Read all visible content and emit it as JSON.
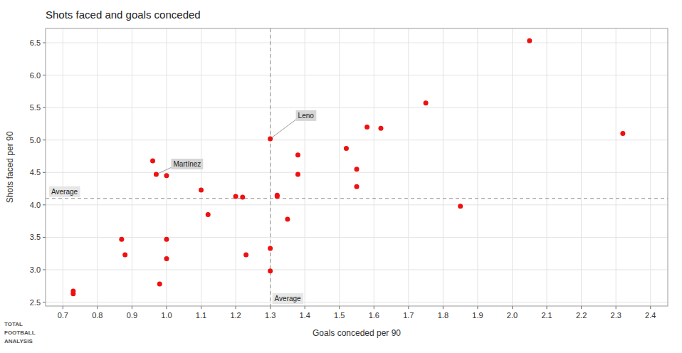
{
  "chart_data": {
    "type": "scatter",
    "title": "Shots faced and goals conceded",
    "xlabel": "Goals conceded per 90",
    "ylabel": "Shots faced per 90",
    "color": "#ee1111",
    "grid": true,
    "xlim": [
      0.65,
      2.45
    ],
    "ylim": [
      2.44,
      6.72
    ],
    "xticks": [
      0.7,
      0.8,
      0.9,
      {
        "value": 1.0,
        "label": "1.0"
      },
      1.1,
      1.2,
      1.3,
      1.4,
      1.5,
      1.6,
      1.7,
      1.8,
      1.9,
      {
        "value": 2.0,
        "label": "2.0"
      },
      2.1,
      2.2,
      2.3,
      2.4
    ],
    "yticks": [
      2.5,
      {
        "value": 3.0,
        "label": "3.0"
      },
      3.5,
      {
        "value": 4.0,
        "label": "4.0"
      },
      4.5,
      {
        "value": 5.0,
        "label": "5.0"
      },
      5.5,
      {
        "value": 6.0,
        "label": "6.0"
      },
      6.5
    ],
    "x": [
      0.73,
      0.73,
      0.87,
      0.88,
      0.96,
      0.97,
      0.98,
      1.0,
      1.0,
      1.0,
      1.1,
      1.12,
      1.2,
      1.22,
      1.23,
      1.3,
      1.3,
      1.3,
      1.32,
      1.32,
      1.35,
      1.38,
      1.38,
      1.52,
      1.55,
      1.55,
      1.58,
      1.62,
      1.75,
      1.85,
      2.05,
      2.32
    ],
    "values": [
      2.63,
      2.67,
      3.47,
      3.23,
      4.68,
      4.47,
      2.78,
      4.45,
      3.47,
      3.17,
      4.23,
      3.85,
      4.13,
      4.12,
      3.23,
      5.02,
      3.33,
      2.98,
      4.15,
      4.13,
      3.78,
      4.77,
      4.47,
      4.87,
      4.55,
      4.28,
      5.2,
      5.18,
      5.57,
      3.98,
      6.53,
      5.1
    ],
    "annotations": [
      {
        "text": "Average",
        "y": 4.1
      },
      {
        "text": "Average",
        "x": 1.3
      },
      {
        "text": "Leno",
        "x": 1.3,
        "y": 5.02
      },
      {
        "text": "Martínez",
        "x": 0.97,
        "y": 4.47
      },
      {
        "text": "TOTAL"
      },
      {
        "text": "FOOTBALL"
      },
      {
        "text": "ANALYSIS"
      }
    ]
  }
}
